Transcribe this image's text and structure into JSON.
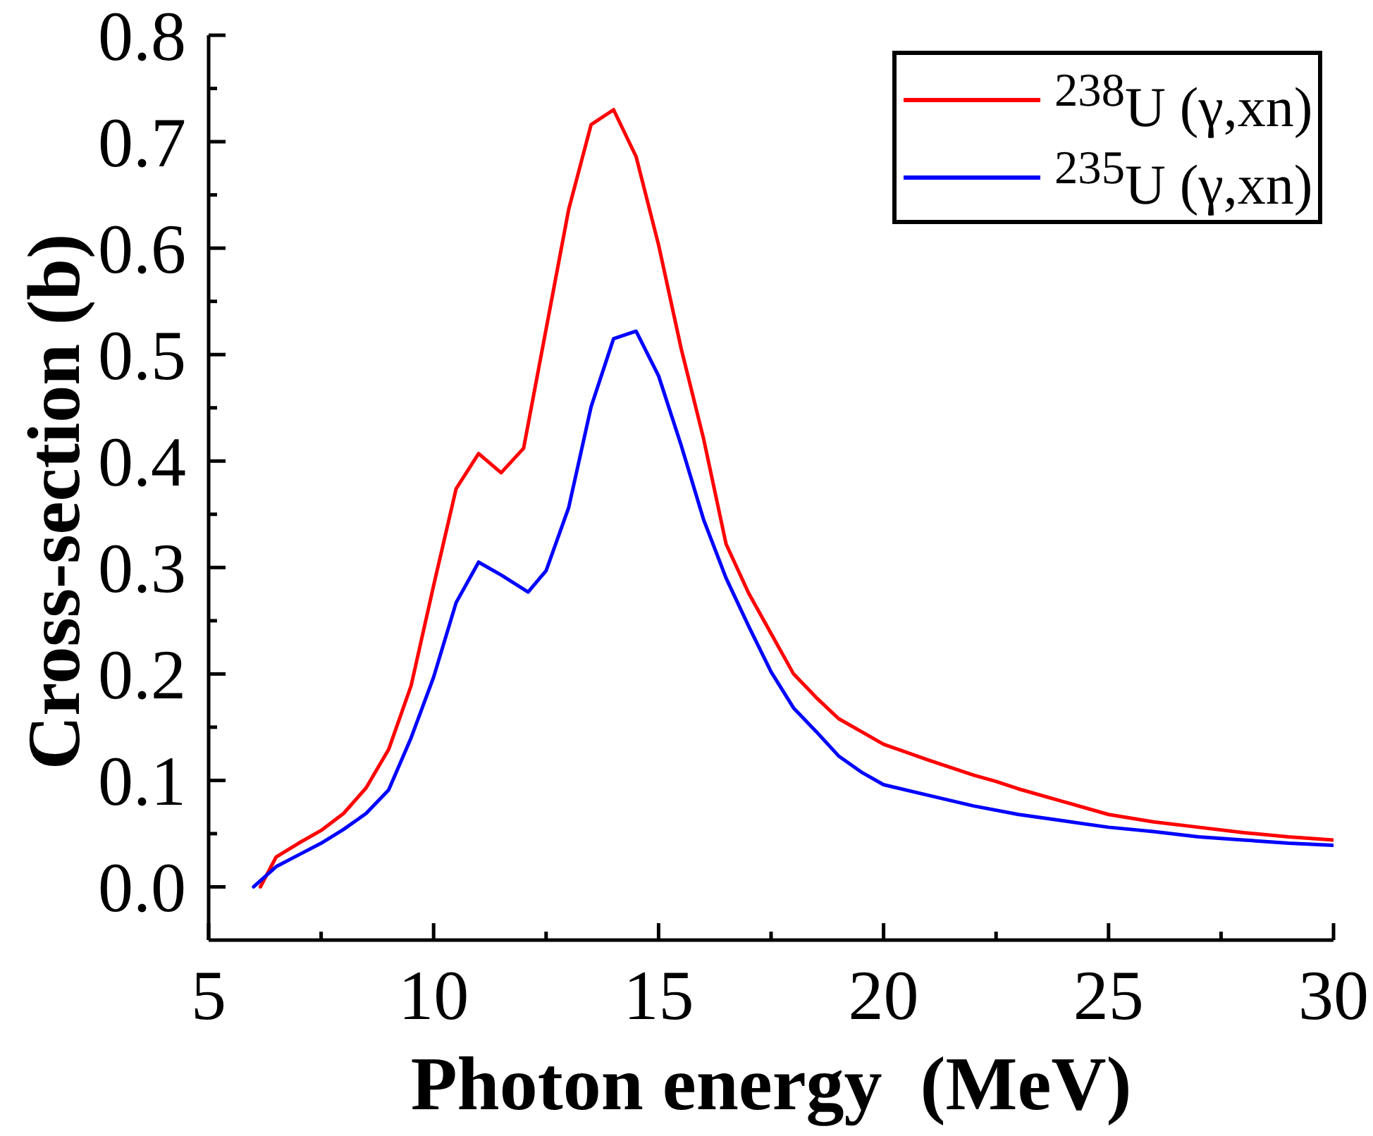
{
  "chart_data": {
    "type": "line",
    "xlabel": "Photon energy  (MeV)",
    "ylabel": "Cross-section (b)",
    "xlim": [
      5,
      30
    ],
    "xticks": [
      5,
      {
        "value": 7.5,
        "label": null
      },
      10,
      {
        "value": 12.5,
        "label": null
      },
      15,
      {
        "value": 17.5,
        "label": null
      },
      20,
      {
        "value": 22.5,
        "label": null
      },
      25,
      {
        "value": 27.5,
        "label": null
      },
      30
    ],
    "ylim": [
      -0.05,
      0.8
    ],
    "yticks": [
      {
        "value": 0,
        "label": "0.0"
      },
      {
        "value": 0.05,
        "label": null
      },
      0.1,
      {
        "value": 0.15,
        "label": null
      },
      0.2,
      {
        "value": 0.25,
        "label": null
      },
      0.3,
      {
        "value": 0.35,
        "label": null
      },
      0.4,
      {
        "value": 0.45,
        "label": null
      },
      0.5,
      {
        "value": 0.55,
        "label": null
      },
      0.6,
      {
        "value": 0.65,
        "label": null
      },
      0.7,
      {
        "value": 0.75,
        "label": null
      },
      0.8
    ],
    "legend": "top right",
    "series": [
      {
        "name": "$^{238}$U (γ,xn)",
        "color": "#ff0000",
        "x": [
          6.15,
          6.4,
          6.5,
          7,
          7.5,
          8,
          8.5,
          9,
          9.5,
          10,
          10.5,
          11,
          11.5,
          12,
          12.5,
          13,
          13.5,
          14,
          14.5,
          15,
          15.5,
          16,
          16.5,
          17,
          17.5,
          18,
          18.5,
          19,
          19.5,
          20,
          21,
          22,
          22.5,
          23,
          24,
          25,
          26,
          27,
          28,
          29,
          30
        ],
        "values": [
          0.0,
          0.02,
          0.028,
          0.041,
          0.053,
          0.069,
          0.093,
          0.129,
          0.189,
          0.283,
          0.374,
          0.407,
          0.389,
          0.412,
          0.524,
          0.636,
          0.716,
          0.73,
          0.686,
          0.603,
          0.506,
          0.421,
          0.322,
          0.276,
          0.238,
          0.2,
          0.178,
          0.158,
          0.146,
          0.134,
          0.119,
          0.105,
          0.099,
          0.092,
          0.08,
          0.068,
          0.061,
          0.056,
          0.051,
          0.047,
          0.044
        ]
      },
      {
        "name": "$^{235}$U (γ,xn)",
        "color": "#0000ff",
        "x": [
          6,
          6.5,
          7,
          7.5,
          8,
          8.5,
          9,
          9.5,
          10,
          10.5,
          11,
          11.5,
          12.1,
          12.5,
          13,
          13.5,
          14,
          14.5,
          15,
          15.5,
          16,
          16.5,
          17,
          17.5,
          18,
          18.5,
          19,
          19.5,
          20,
          21,
          22,
          23,
          24,
          25,
          26,
          27,
          28,
          29,
          30
        ],
        "values": [
          0.0,
          0.019,
          0.03,
          0.041,
          0.054,
          0.069,
          0.091,
          0.14,
          0.197,
          0.267,
          0.305,
          0.293,
          0.277,
          0.297,
          0.356,
          0.451,
          0.515,
          0.522,
          0.48,
          0.415,
          0.345,
          0.29,
          0.245,
          0.202,
          0.168,
          0.146,
          0.123,
          0.108,
          0.096,
          0.086,
          0.076,
          0.068,
          0.062,
          0.056,
          0.052,
          0.047,
          0.044,
          0.041,
          0.039
        ]
      }
    ]
  }
}
